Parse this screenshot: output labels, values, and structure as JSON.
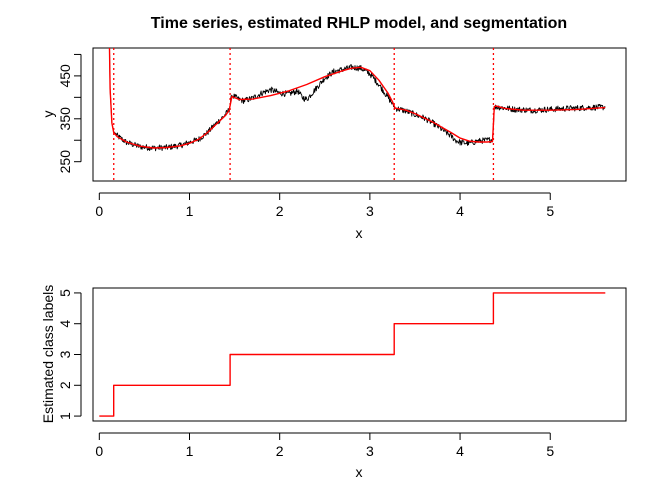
{
  "chart_data": [
    {
      "type": "line",
      "title": "Time series, estimated RHLP model, and segmentation",
      "xlabel": "x",
      "ylabel": "y",
      "xlim": [
        -0.07,
        5.84
      ],
      "ylim": [
        205,
        515
      ],
      "xticks": [
        0,
        1,
        2,
        3,
        4,
        5
      ],
      "yticks": [
        250,
        350,
        450
      ],
      "yticks_minor": [
        300,
        400,
        500
      ],
      "grid": false,
      "legend": "none",
      "series": [
        {
          "color": "#000000",
          "noise_amplitude": 7,
          "x": [
            0.1,
            0.12,
            0.14,
            0.16,
            0.2,
            0.3,
            0.45,
            0.6,
            0.75,
            0.9,
            1.0,
            1.1,
            1.2,
            1.3,
            1.4,
            1.44,
            1.47,
            1.55,
            1.6,
            1.7,
            1.8,
            1.9,
            2.0,
            2.1,
            2.2,
            2.25,
            2.3,
            2.4,
            2.5,
            2.6,
            2.7,
            2.8,
            2.9,
            3.0,
            3.1,
            3.2,
            3.25,
            3.28,
            3.4,
            3.5,
            3.6,
            3.7,
            3.8,
            3.9,
            3.95,
            4.0,
            4.1,
            4.2,
            4.3,
            4.36,
            4.38,
            4.4,
            4.5,
            4.6,
            4.8,
            5.0,
            5.2,
            5.4,
            5.61
          ],
          "y": [
            700,
            420,
            340,
            320,
            310,
            295,
            285,
            282,
            283,
            288,
            295,
            302,
            318,
            340,
            360,
            372,
            405,
            395,
            392,
            398,
            410,
            418,
            410,
            408,
            415,
            400,
            395,
            420,
            445,
            460,
            465,
            470,
            468,
            455,
            430,
            400,
            385,
            375,
            368,
            360,
            352,
            340,
            325,
            310,
            300,
            295,
            293,
            298,
            300,
            302,
            375,
            378,
            375,
            372,
            370,
            372,
            374,
            376,
            377
          ]
        },
        {
          "color": "#ff0000",
          "x": [
            0.1,
            0.12,
            0.14,
            0.16,
            0.2,
            0.3,
            0.45,
            0.6,
            0.75,
            0.9,
            1.0,
            1.1,
            1.2,
            1.3,
            1.4,
            1.44,
            1.47,
            1.55,
            1.7,
            1.9,
            2.1,
            2.3,
            2.5,
            2.7,
            2.8,
            2.9,
            3.0,
            3.1,
            3.2,
            3.25,
            3.28,
            3.4,
            3.5,
            3.6,
            3.7,
            3.8,
            3.9,
            4.0,
            4.1,
            4.2,
            4.3,
            4.36,
            4.38,
            4.4,
            4.5,
            4.7,
            5.0,
            5.3,
            5.61
          ],
          "y": [
            700,
            420,
            340,
            318,
            308,
            296,
            286,
            282,
            283,
            287,
            293,
            302,
            318,
            338,
            358,
            370,
            402,
            395,
            396,
            404,
            415,
            430,
            448,
            462,
            468,
            470,
            462,
            440,
            410,
            390,
            375,
            370,
            362,
            352,
            342,
            330,
            318,
            305,
            298,
            296,
            296,
            297,
            378,
            380,
            374,
            370,
            370,
            372,
            376
          ]
        }
      ],
      "vlines": {
        "color": "#ff0000",
        "style": "dotted",
        "x": [
          0.16,
          1.45,
          3.27,
          4.37
        ]
      }
    },
    {
      "type": "line",
      "title": "",
      "xlabel": "x",
      "ylabel": "Estimated class labels",
      "xlim": [
        -0.07,
        5.84
      ],
      "ylim": [
        0.84,
        5.16
      ],
      "xticks": [
        0,
        1,
        2,
        3,
        4,
        5
      ],
      "yticks": [
        1,
        2,
        3,
        4,
        5
      ],
      "grid": false,
      "legend": "none",
      "series": [
        {
          "color": "#ff0000",
          "step": true,
          "x": [
            0.0,
            0.16,
            0.16,
            1.45,
            1.45,
            3.27,
            3.27,
            4.37,
            4.37,
            5.61
          ],
          "y": [
            1,
            1,
            2,
            2,
            3,
            3,
            4,
            4,
            5,
            5
          ]
        }
      ]
    }
  ]
}
